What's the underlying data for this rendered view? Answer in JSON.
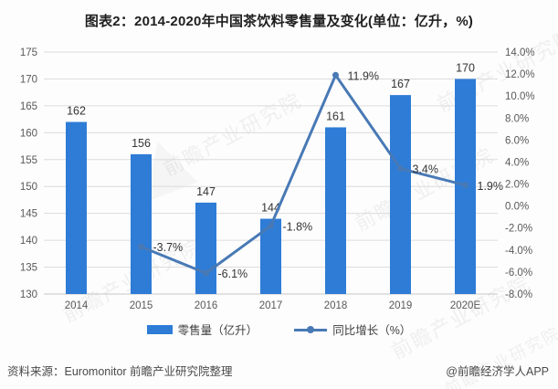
{
  "title": "图表2：2014-2020年中国茶饮料零售量及变化(单位：亿升，%)",
  "chart_data": {
    "type": "bar+line",
    "title": "图表2：2014-2020年中国茶饮料零售量及变化(单位：亿升，%)",
    "categories": [
      "2014",
      "2015",
      "2016",
      "2017",
      "2018",
      "2019",
      "2020E"
    ],
    "series": [
      {
        "name": "零售量（亿升）",
        "type": "bar",
        "axis": "left",
        "color": "#2e7cd6",
        "values": [
          162,
          156,
          147,
          144,
          161,
          167,
          170
        ],
        "labels": [
          "162",
          "156",
          "147",
          "144",
          "161",
          "167",
          "170"
        ]
      },
      {
        "name": "同比增长（%）",
        "type": "line",
        "axis": "right",
        "color": "#4879b5",
        "values": [
          null,
          -3.7,
          -6.1,
          -1.8,
          11.9,
          3.4,
          1.9
        ],
        "labels": [
          null,
          "-3.7%",
          "-6.1%",
          "-1.8%",
          "11.9%",
          "3.4%",
          "1.9%"
        ]
      }
    ],
    "left_axis": {
      "min": 130,
      "max": 175,
      "step": 5,
      "ticks": [
        "175",
        "170",
        "165",
        "160",
        "155",
        "150",
        "145",
        "140",
        "135",
        "130"
      ]
    },
    "right_axis": {
      "min": -8,
      "max": 14,
      "step": 2,
      "ticks": [
        "14.0%",
        "12.0%",
        "10.0%",
        "8.0%",
        "6.0%",
        "4.0%",
        "2.0%",
        "0.0%",
        "-2.0%",
        "-4.0%",
        "-6.0%",
        "-8.0%"
      ]
    },
    "grid": true,
    "grid_color": "#dcdcdc",
    "axis_line_color": "#c6c6c6",
    "axis_text_color": "#595959",
    "data_label_color": "#333333",
    "legend_position": "bottom",
    "xlabel": "",
    "ylabel": ""
  },
  "footer": {
    "source": "资料来源：Euromonitor 前瞻产业研究院整理",
    "credit": "@前瞻经济学人APP"
  },
  "watermark": {
    "text": "前瞻产业研究院"
  }
}
